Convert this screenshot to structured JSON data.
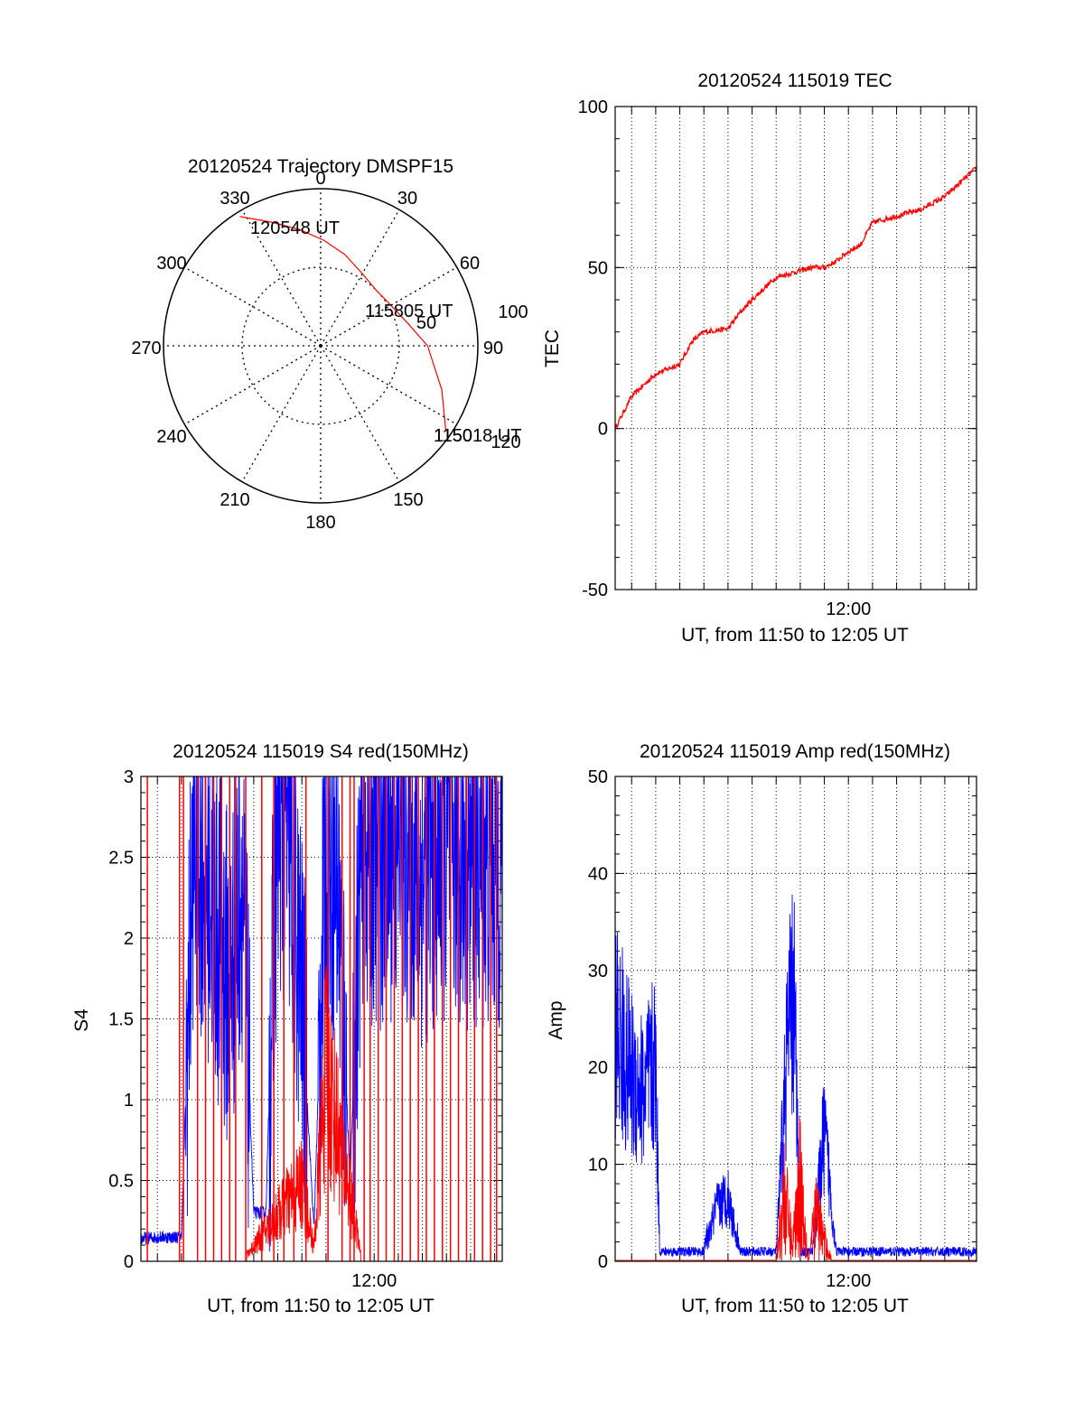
{
  "colors": {
    "red": "#ff0000",
    "blue": "#0000ff",
    "axis": "#000000",
    "grid": "#000000"
  },
  "chart_data": [
    {
      "id": "polar",
      "type": "polar-trajectory",
      "title": "20120524 Trajectory DMSPF15",
      "angle_labels": [
        "0",
        "30",
        "60",
        "90",
        "120",
        "150",
        "180",
        "210",
        "240",
        "270",
        "300",
        "330"
      ],
      "radius_labels": [
        "50",
        "100"
      ],
      "r_max": 100,
      "series": [
        {
          "color": "red",
          "points": [
            [
              328,
              97
            ],
            [
              338,
              85
            ],
            [
              350,
              75
            ],
            [
              2,
              67
            ],
            [
              15,
              60
            ],
            [
              30,
              53
            ],
            [
              45,
              50
            ],
            [
              57,
              51
            ],
            [
              75,
              57
            ],
            [
              90,
              68
            ],
            [
              110,
              82
            ],
            [
              124,
              96
            ]
          ]
        }
      ],
      "annotations": [
        {
          "text": "120548 UT",
          "az": 346,
          "r": 78
        },
        {
          "text": "115805 UT",
          "az": 65,
          "r": 57
        },
        {
          "text": "115018 UT",
          "az": 112,
          "r": 96
        },
        {
          "text": "1150",
          "az": 118,
          "r": 93
        }
      ]
    },
    {
      "id": "tec",
      "type": "line",
      "title": "20120524 115019 TEC",
      "xlabel": "UT, from 11:50 to 12:05 UT",
      "ylabel": "TEC",
      "xlim": [
        "11:50:19",
        "12:05:19"
      ],
      "ylim": [
        -50,
        100
      ],
      "yticks": [
        "-50",
        "0",
        "50",
        "100"
      ],
      "xtick_labels": [
        {
          "t": "12:00",
          "label": "12:00"
        }
      ],
      "series": [
        {
          "color": "red",
          "x": [
            "11:50:19",
            "11:51:00",
            "11:52:00",
            "11:53:00",
            "11:53:30",
            "11:54:00",
            "11:55:00",
            "11:55:30",
            "11:56:00",
            "11:57:00",
            "11:57:30",
            "11:58:30",
            "11:59:00",
            "11:59:30",
            "12:00:00",
            "12:00:30",
            "12:01:00",
            "12:02:00",
            "12:03:00",
            "12:04:00",
            "12:05:19"
          ],
          "y": [
            0,
            10,
            17,
            20,
            27,
            30,
            31,
            36,
            40,
            47,
            48,
            50,
            50,
            52,
            55,
            57,
            64,
            66,
            68,
            72,
            81
          ]
        }
      ]
    },
    {
      "id": "s4",
      "type": "line",
      "title": "20120524 115019 S4 red(150MHz)",
      "xlabel": "UT, from 11:50 to 12:05 UT",
      "ylabel": "S4",
      "xlim": [
        "11:50:19",
        "12:05:19"
      ],
      "ylim": [
        0,
        3
      ],
      "yticks": [
        "0",
        "0.5",
        "1",
        "1.5",
        "2",
        "2.5",
        "3"
      ],
      "xtick_labels": [
        {
          "t": "12:00",
          "label": "12:00"
        }
      ],
      "series": [
        {
          "color": "blue",
          "x": [
            "11:50:19",
            "11:51:00",
            "11:52:00",
            "11:52:30",
            "11:53:00",
            "11:54:00",
            "11:54:30",
            "11:55:00",
            "11:55:30",
            "11:56:00",
            "11:56:30",
            "11:57:00",
            "11:57:30",
            "11:58:00",
            "11:58:30",
            "11:59:00",
            "11:59:30",
            "12:00:00",
            "12:01:00",
            "12:02:00",
            "12:03:00",
            "12:04:00",
            "12:05:19"
          ],
          "y": [
            0.14,
            0.15,
            0.15,
            2.6,
            2.4,
            1.7,
            2.4,
            0.3,
            0.3,
            2.8,
            2.5,
            1.6,
            0.2,
            2.6,
            2.3,
            0.5,
            2.7,
            2.5,
            2.6,
            2.4,
            2.6,
            2.5,
            2.5
          ]
        },
        {
          "color": "red",
          "x": [
            "11:50:19",
            "11:54:30",
            "11:57:00",
            "11:57:30",
            "11:58:00",
            "11:58:30",
            "11:59:00",
            "11:59:30",
            "12:05:19"
          ],
          "y": [
            0,
            0,
            0.6,
            0.1,
            1.5,
            1.0,
            0.5,
            0,
            0
          ]
        }
      ]
    },
    {
      "id": "amp",
      "type": "line",
      "title": "20120524 115019 Amp red(150MHz)",
      "xlabel": "UT, from 11:50 to 12:05 UT",
      "ylabel": "Amp",
      "xlim": [
        "11:50:19",
        "12:05:19"
      ],
      "ylim": [
        0,
        50
      ],
      "yticks": [
        "0",
        "10",
        "20",
        "30",
        "40",
        "50"
      ],
      "xtick_labels": [
        {
          "t": "12:00",
          "label": "12:00"
        }
      ],
      "series": [
        {
          "color": "blue",
          "x": [
            "11:50:19",
            "11:50:40",
            "11:51:00",
            "11:51:30",
            "11:52:00",
            "11:52:10",
            "11:53:00",
            "11:54:00",
            "11:54:30",
            "11:55:00",
            "11:55:30",
            "11:56:00",
            "11:57:00",
            "11:57:30",
            "11:57:45",
            "11:58:00",
            "11:58:30",
            "11:59:00",
            "11:59:30",
            "12:00:00",
            "12:01:00",
            "12:02:00",
            "12:03:00",
            "12:04:00",
            "12:05:19"
          ],
          "y": [
            36,
            32,
            28,
            26,
            30,
            1,
            1,
            1,
            8,
            10,
            1,
            1,
            1,
            35,
            40,
            1,
            1,
            20,
            1,
            1,
            1,
            1,
            1,
            1,
            1
          ]
        },
        {
          "color": "red",
          "x": [
            "11:50:19",
            "11:57:00",
            "11:57:20",
            "11:57:40",
            "11:58:00",
            "11:58:20",
            "11:58:40",
            "11:59:00",
            "11:59:20",
            "12:05:19"
          ],
          "y": [
            0,
            0,
            14,
            3,
            17,
            0,
            10,
            4,
            0,
            0
          ]
        }
      ]
    }
  ]
}
